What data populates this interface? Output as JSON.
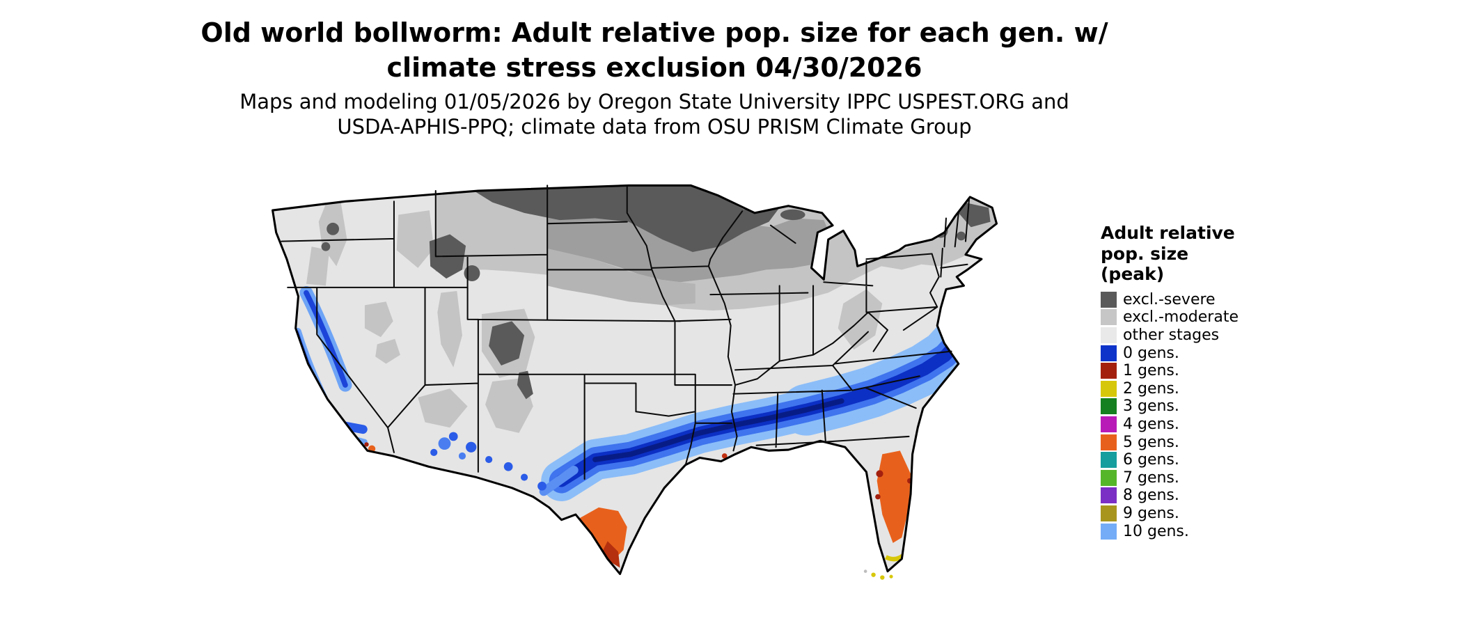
{
  "title": {
    "line1": "Old world bollworm: Adult relative pop. size for each gen. w/",
    "line2": "climate stress exclusion 04/30/2026"
  },
  "subtitle": {
    "line1": "Maps and modeling 01/05/2026 by Oregon State University IPPC USPEST.ORG and",
    "line2": "USDA-APHIS-PPQ; climate data from OSU PRISM Climate Group"
  },
  "legend": {
    "title_line1": "Adult relative",
    "title_line2": "pop. size",
    "title_line3": "(peak)",
    "items": [
      {
        "label": "excl.-severe",
        "color": "#5a5a5a"
      },
      {
        "label": "excl.-moderate",
        "color": "#c6c6c6"
      },
      {
        "label": "other stages",
        "color": "#e9e9e9"
      },
      {
        "label": "0 gens.",
        "color": "#0d33c9"
      },
      {
        "label": "1 gens.",
        "color": "#a3200f"
      },
      {
        "label": "2 gens.",
        "color": "#d7c70a"
      },
      {
        "label": "3 gens.",
        "color": "#14801f"
      },
      {
        "label": "4 gens.",
        "color": "#b81ab8"
      },
      {
        "label": "5 gens.",
        "color": "#e8611c"
      },
      {
        "label": "6 gens.",
        "color": "#169d9d"
      },
      {
        "label": "7 gens.",
        "color": "#56b62a"
      },
      {
        "label": "8 gens.",
        "color": "#7b2fc4"
      },
      {
        "label": "9 gens.",
        "color": "#a8951e"
      },
      {
        "label": "10 gens.",
        "color": "#74acf7"
      }
    ]
  },
  "map": {
    "region": "Contiguous United States with state boundaries",
    "date_shown": "04/30/2026",
    "patterns": [
      {
        "area": "Northern Montana, North Dakota, northern Minnesota, interior Maine, high Rockies",
        "category": "excl.-severe"
      },
      {
        "area": "Upper Midwest band, northern New England, Cascades, Rockies, Great Basin highlands, Appalachians",
        "category": "excl.-moderate"
      },
      {
        "area": "Most of the central, eastern and far-western interior",
        "category": "other stages"
      },
      {
        "area": "Band from central Texas across the Gulf South to the Carolinas/Virginia coast; California Sierra and coast ranges; scattered southern New Mexico and southeast Arizona",
        "category": "0 gens."
      },
      {
        "area": "South Texas (Lower Rio Grande Valley), central Florida peninsula, Imperial Valley California",
        "category": "5 gens."
      },
      {
        "area": "Fringes of the South Texas and Florida warm zones",
        "category": "1 gens."
      },
      {
        "area": "Southern tip of Florida and the Keys",
        "category": "2 gens."
      }
    ]
  }
}
